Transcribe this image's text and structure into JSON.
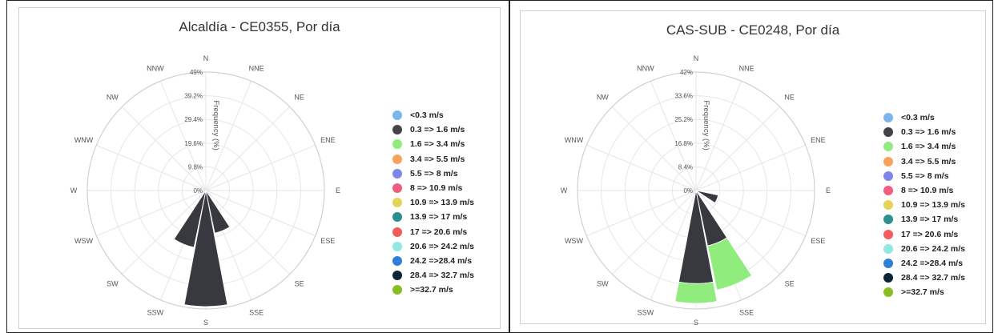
{
  "chart_data": [
    {
      "type": "wind-rose",
      "title": "Alcaldía - CE0355, Por día",
      "radial_axis_label": "Frequency (%)",
      "radial_ticks": [
        "0%",
        "9.8%",
        "19.6%",
        "29.4%",
        "39.2%",
        "49%"
      ],
      "radial_max": 49,
      "directions": [
        "N",
        "NNE",
        "NE",
        "ENE",
        "E",
        "ESE",
        "SE",
        "SSE",
        "S",
        "SSW",
        "SW",
        "WSW",
        "W",
        "WNW",
        "NW",
        "NNW"
      ],
      "series": [
        {
          "name": "0.3 => 1.6 m/s",
          "color": "#38383f",
          "values": [
            0,
            0,
            0,
            0,
            0,
            0,
            0,
            18,
            48,
            24,
            0,
            0,
            0,
            0,
            0,
            0
          ]
        }
      ],
      "legend": [
        {
          "label": "<0.3 m/s",
          "color": "#7cb5ec"
        },
        {
          "label": "0.3 => 1.6 m/s",
          "color": "#434348"
        },
        {
          "label": "1.6 => 3.4 m/s",
          "color": "#90ed7d"
        },
        {
          "label": "3.4 => 5.5 m/s",
          "color": "#f7a35c"
        },
        {
          "label": "5.5 => 8 m/s",
          "color": "#8085e9"
        },
        {
          "label": "8 => 10.9 m/s",
          "color": "#f15c80"
        },
        {
          "label": "10.9 => 13.9 m/s",
          "color": "#e4d354"
        },
        {
          "label": "13.9 => 17 m/s",
          "color": "#2b908f"
        },
        {
          "label": "17 => 20.6 m/s",
          "color": "#f45b5b"
        },
        {
          "label": "20.6 => 24.2 m/s",
          "color": "#91e8e1"
        },
        {
          "label": "24.2 =>28.4 m/s",
          "color": "#2f7ed8"
        },
        {
          "label": "28.4 => 32.7 m/s",
          "color": "#0d233a"
        },
        {
          "label": ">=32.7 m/s",
          "color": "#8bbc21"
        }
      ],
      "legend_position": "right"
    },
    {
      "type": "wind-rose",
      "title": "CAS-SUB - CE0248, Por día",
      "radial_axis_label": "Frequency (%)",
      "radial_ticks": [
        "0%",
        "8.4%",
        "16.8%",
        "25.2%",
        "33.6%",
        "42%"
      ],
      "radial_max": 42,
      "directions": [
        "N",
        "NNE",
        "NE",
        "ENE",
        "E",
        "ESE",
        "SE",
        "SSE",
        "S",
        "SSW",
        "SW",
        "WSW",
        "W",
        "WNW",
        "NW",
        "NNW"
      ],
      "series": [
        {
          "name": "0.3 => 1.6 m/s",
          "color": "#38383f",
          "values": [
            0,
            0,
            0,
            0,
            0,
            8,
            0,
            20,
            33,
            0,
            0,
            0,
            0,
            0,
            0,
            0
          ]
        },
        {
          "name": "1.6 => 3.4 m/s",
          "color": "#90ed7d",
          "values": [
            0,
            0,
            0,
            0,
            0,
            0,
            0,
            16,
            7,
            0,
            0,
            0,
            0,
            0,
            0,
            0
          ]
        }
      ],
      "legend": [
        {
          "label": "<0.3 m/s",
          "color": "#7cb5ec"
        },
        {
          "label": "0.3 => 1.6 m/s",
          "color": "#434348"
        },
        {
          "label": "1.6 => 3.4 m/s",
          "color": "#90ed7d"
        },
        {
          "label": "3.4 => 5.5 m/s",
          "color": "#f7a35c"
        },
        {
          "label": "5.5 => 8 m/s",
          "color": "#8085e9"
        },
        {
          "label": "8 => 10.9 m/s",
          "color": "#f15c80"
        },
        {
          "label": "10.9 => 13.9 m/s",
          "color": "#e4d354"
        },
        {
          "label": "13.9 => 17 m/s",
          "color": "#2b908f"
        },
        {
          "label": "17 => 20.6 m/s",
          "color": "#f45b5b"
        },
        {
          "label": "20.6 => 24.2 m/s",
          "color": "#91e8e1"
        },
        {
          "label": "24.2 =>28.4 m/s",
          "color": "#2f7ed8"
        },
        {
          "label": "28.4 => 32.7 m/s",
          "color": "#0d233a"
        },
        {
          "label": ">=32.7 m/s",
          "color": "#8bbc21"
        }
      ],
      "legend_position": "right"
    }
  ]
}
